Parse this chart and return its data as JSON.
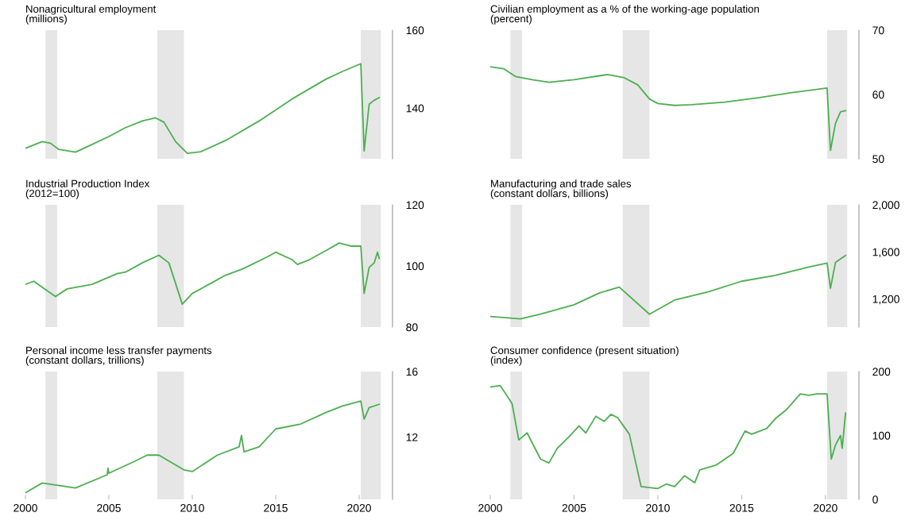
{
  "chart_data": [
    {
      "type": "line",
      "title": "Nonagricultural employment",
      "subtitle": "(millions)",
      "xlim": [
        2000,
        2022
      ],
      "ylim": [
        127,
        160
      ],
      "yticks": [
        140,
        160
      ],
      "tick_labels": "y",
      "grid": false,
      "legend": false,
      "x": [
        2000,
        2001,
        2001.5,
        2002,
        2003,
        2004,
        2005,
        2006,
        2007,
        2007.8,
        2008.3,
        2009,
        2009.7,
        2010.5,
        2012,
        2014,
        2016,
        2018,
        2019,
        2020.1,
        2020.3,
        2020.6,
        2020.9,
        2021.2
      ],
      "series": [
        {
          "color": "#4caf50",
          "values": [
            129.7,
            131.4,
            131,
            129.4,
            128.7,
            130.7,
            132.7,
            135,
            136.7,
            137.5,
            136.4,
            131.4,
            128.4,
            128.8,
            131.7,
            136.7,
            142.4,
            147.4,
            149.4,
            151.4,
            129,
            141,
            142,
            142.7
          ]
        }
      ],
      "bands": [
        {
          "axis": "x",
          "from": 2001.2,
          "to": 2001.9,
          "color": "#e6e6e6"
        },
        {
          "axis": "x",
          "from": 2007.9,
          "to": 2009.5,
          "color": "#e6e6e6"
        },
        {
          "axis": "x",
          "from": 2020.1,
          "to": 2021.3,
          "color": "#e6e6e6"
        }
      ]
    },
    {
      "type": "line",
      "title": "Civilian employment as a % of the working-age population",
      "subtitle": "(percent)",
      "xlim": [
        2000,
        2022
      ],
      "ylim": [
        50,
        70
      ],
      "yticks": [
        50,
        60,
        70
      ],
      "tick_labels": "y",
      "grid": false,
      "legend": false,
      "x": [
        2000,
        2000.8,
        2001.5,
        2002.5,
        2003.5,
        2005,
        2006.5,
        2007,
        2008,
        2008.8,
        2009.5,
        2010,
        2011,
        2012,
        2014,
        2016,
        2018,
        2020.1,
        2020.3,
        2020.6,
        2020.9,
        2021.2
      ],
      "series": [
        {
          "color": "#4caf50",
          "values": [
            64.3,
            64,
            62.8,
            62.3,
            61.9,
            62.3,
            62.9,
            63.1,
            62.6,
            61.5,
            59.3,
            58.6,
            58.3,
            58.4,
            58.8,
            59.5,
            60.3,
            61,
            51.3,
            55.5,
            57.3,
            57.5
          ]
        }
      ],
      "bands": [
        {
          "axis": "x",
          "from": 2001.2,
          "to": 2001.9,
          "color": "#e6e6e6"
        },
        {
          "axis": "x",
          "from": 2007.9,
          "to": 2009.5,
          "color": "#e6e6e6"
        },
        {
          "axis": "x",
          "from": 2020.1,
          "to": 2021.3,
          "color": "#e6e6e6"
        }
      ]
    },
    {
      "type": "line",
      "title": "Industrial Production Index",
      "subtitle": "(2012=100)",
      "xlim": [
        2000,
        2022
      ],
      "ylim": [
        80,
        120
      ],
      "yticks": [
        80,
        100,
        120
      ],
      "tick_labels": "y",
      "grid": false,
      "legend": false,
      "x": [
        2000,
        2000.5,
        2001.8,
        2002.5,
        2004,
        2005.5,
        2006,
        2007,
        2008,
        2008.6,
        2009.4,
        2010,
        2011,
        2012,
        2013,
        2014.5,
        2015,
        2016,
        2016.3,
        2017,
        2018,
        2018.8,
        2019.5,
        2020.1,
        2020.3,
        2020.6,
        2020.9,
        2021.1,
        2021.2
      ],
      "series": [
        {
          "color": "#4caf50",
          "values": [
            94,
            95,
            90,
            92.5,
            94,
            97.5,
            98,
            101,
            103.5,
            101,
            87.5,
            91,
            94,
            97,
            99,
            103,
            104.5,
            102,
            100.5,
            102,
            105,
            107.5,
            106.5,
            106.5,
            91,
            99.5,
            101,
            104.5,
            102.5
          ]
        }
      ],
      "bands": [
        {
          "axis": "x",
          "from": 2001.2,
          "to": 2001.9,
          "color": "#e6e6e6"
        },
        {
          "axis": "x",
          "from": 2007.9,
          "to": 2009.5,
          "color": "#e6e6e6"
        },
        {
          "axis": "x",
          "from": 2020.1,
          "to": 2021.3,
          "color": "#e6e6e6"
        }
      ]
    },
    {
      "type": "line",
      "title": "Manufacturing and trade sales",
      "subtitle": "(constant dollars, billions)",
      "xlim": [
        2000,
        2022
      ],
      "ylim": [
        960,
        2000
      ],
      "yticks": [
        {
          "value": 1200,
          "label": "1,200"
        },
        {
          "value": 1600,
          "label": "1,600"
        },
        {
          "value": 2000,
          "label": "2,000"
        }
      ],
      "tick_labels": "y",
      "grid": false,
      "legend": false,
      "x": [
        2000,
        2001.8,
        2003,
        2005,
        2006.5,
        2007.7,
        2009.5,
        2011,
        2013,
        2015,
        2017,
        2019,
        2020.1,
        2020.3,
        2020.6,
        2021.2
      ],
      "series": [
        {
          "color": "#4caf50",
          "values": [
            1050,
            1030,
            1070,
            1150,
            1250,
            1300,
            1070,
            1190,
            1260,
            1350,
            1400,
            1470,
            1505,
            1290,
            1510,
            1570
          ]
        }
      ],
      "bands": [
        {
          "axis": "x",
          "from": 2001.2,
          "to": 2001.9,
          "color": "#e6e6e6"
        },
        {
          "axis": "x",
          "from": 2007.9,
          "to": 2009.5,
          "color": "#e6e6e6"
        },
        {
          "axis": "x",
          "from": 2020.1,
          "to": 2021.3,
          "color": "#e6e6e6"
        }
      ]
    },
    {
      "type": "line",
      "title": "Personal income less transfer payments",
      "subtitle": "(constant dollars, trillions)",
      "xlim": [
        2000,
        2022
      ],
      "ylim": [
        8.2,
        16
      ],
      "yticks": [
        12,
        16
      ],
      "xticks": [
        2000,
        2005,
        2010,
        2015,
        2020
      ],
      "grid": false,
      "legend": false,
      "x": [
        2000,
        2001,
        2003,
        2004.9,
        2004.95,
        2005,
        2006.5,
        2007.3,
        2008,
        2008.5,
        2009.5,
        2010,
        2011.5,
        2012.8,
        2012.95,
        2013.1,
        2014,
        2015,
        2016.5,
        2018,
        2019,
        2020.1,
        2020.3,
        2020.6,
        2021.2
      ],
      "series": [
        {
          "color": "#4caf50",
          "values": [
            8.6,
            9.2,
            8.9,
            9.7,
            10.1,
            9.8,
            10.5,
            10.9,
            10.9,
            10.6,
            10,
            9.9,
            10.9,
            11.4,
            12.1,
            11.1,
            11.4,
            12.5,
            12.8,
            13.5,
            13.9,
            14.2,
            13.1,
            13.8,
            14
          ]
        }
      ],
      "bands": [
        {
          "axis": "x",
          "from": 2001.2,
          "to": 2001.9,
          "color": "#e6e6e6"
        },
        {
          "axis": "x",
          "from": 2007.9,
          "to": 2009.5,
          "color": "#e6e6e6"
        },
        {
          "axis": "x",
          "from": 2020.1,
          "to": 2021.3,
          "color": "#e6e6e6"
        }
      ]
    },
    {
      "type": "line",
      "title": "Consumer confidence (present situation)",
      "subtitle": "(index)",
      "xlim": [
        2000,
        2022
      ],
      "ylim": [
        0,
        200
      ],
      "yticks": [
        0,
        100,
        200
      ],
      "xticks": [
        2000,
        2005,
        2010,
        2015,
        2020
      ],
      "grid": false,
      "legend": false,
      "x": [
        2000,
        2000.6,
        2001.3,
        2001.7,
        2002.2,
        2003,
        2003.5,
        2004,
        2004.7,
        2005.3,
        2005.7,
        2006.3,
        2006.8,
        2007.2,
        2007.6,
        2008.3,
        2009,
        2010,
        2010.5,
        2011,
        2011.6,
        2012.2,
        2012.5,
        2013.5,
        2014.5,
        2015.2,
        2015.6,
        2016.5,
        2017,
        2017.7,
        2018.5,
        2019,
        2019.5,
        2020.1,
        2020.35,
        2020.6,
        2020.9,
        2021,
        2021.2
      ],
      "series": [
        {
          "color": "#4caf50",
          "values": [
            176,
            178,
            150,
            93,
            104,
            63,
            57,
            80,
            98,
            115,
            104,
            130,
            122,
            133,
            128,
            102,
            20,
            17,
            24,
            20,
            37,
            26,
            46,
            54,
            72,
            107,
            102,
            111,
            126,
            141,
            165,
            163,
            165,
            165,
            63,
            85,
            100,
            80,
            135
          ]
        }
      ],
      "bands": [
        {
          "axis": "x",
          "from": 2001.2,
          "to": 2001.9,
          "color": "#e6e6e6"
        },
        {
          "axis": "x",
          "from": 2007.9,
          "to": 2009.5,
          "color": "#e6e6e6"
        },
        {
          "axis": "x",
          "from": 2020.1,
          "to": 2021.3,
          "color": "#e6e6e6"
        }
      ]
    }
  ]
}
